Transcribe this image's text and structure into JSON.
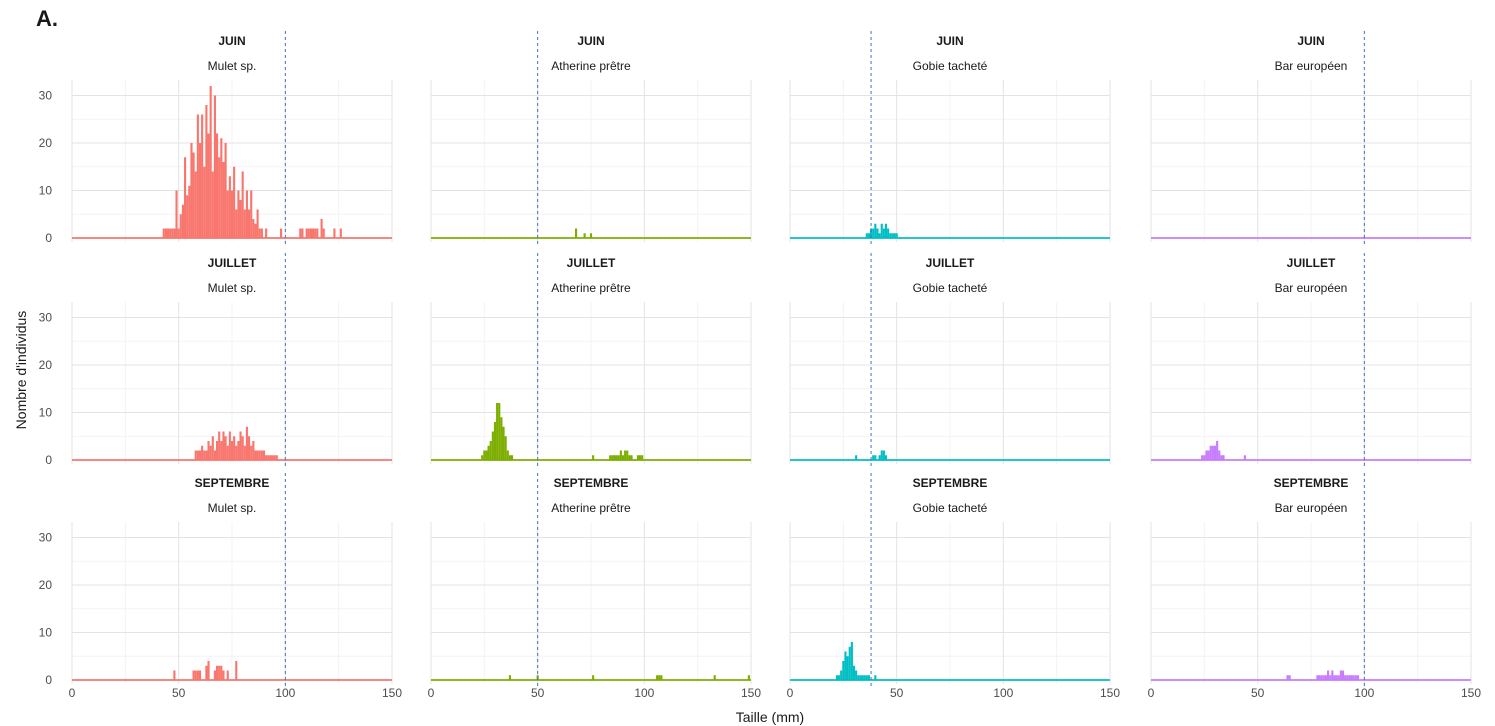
{
  "figure_label": "A.",
  "chart_data": {
    "type": "bar",
    "layout": "facet-grid",
    "xlabel": "Taille (mm)",
    "ylabel": "Nombre d'individus",
    "xlim": [
      0,
      150
    ],
    "ylim": [
      0,
      32
    ],
    "x_ticks": [
      0,
      50,
      100,
      150
    ],
    "y_ticks": [
      0,
      10,
      20,
      30
    ],
    "grid": true,
    "bar_width_mm": 1,
    "rows": [
      "JUIN",
      "JUILLET",
      "SEPTEMBRE"
    ],
    "columns": [
      {
        "species": "Mulet sp.",
        "color": "#F8766D",
        "reference_x": 100
      },
      {
        "species": "Atherine prêtre",
        "color": "#7CAE00",
        "reference_x": 50
      },
      {
        "species": "Gobie tacheté",
        "color": "#00BFC4",
        "reference_x": 38
      },
      {
        "species": "Bar européen",
        "color": "#C77CFF",
        "reference_x": 100
      }
    ],
    "panels": [
      {
        "month": "JUIN",
        "species": "Mulet sp.",
        "x": [
          43,
          44,
          45,
          46,
          47,
          48,
          49,
          50,
          51,
          52,
          53,
          54,
          55,
          56,
          57,
          58,
          59,
          60,
          61,
          62,
          63,
          64,
          65,
          66,
          67,
          68,
          69,
          70,
          71,
          72,
          73,
          74,
          75,
          76,
          77,
          78,
          79,
          80,
          81,
          82,
          83,
          84,
          85,
          86,
          87,
          88,
          89,
          91,
          98,
          107,
          108,
          110,
          111,
          112,
          113,
          114,
          115,
          117,
          118,
          123,
          126
        ],
        "y": [
          2,
          2,
          2,
          2,
          2,
          2,
          10,
          2,
          5,
          7,
          17,
          9,
          11,
          20,
          18,
          14,
          26,
          20,
          26,
          15,
          28,
          22,
          32,
          14,
          30,
          22,
          17,
          21,
          16,
          20,
          10,
          13,
          10,
          15,
          6,
          10,
          8,
          14,
          6,
          10,
          6,
          10,
          4,
          3,
          6,
          2,
          2,
          2,
          2,
          2,
          2,
          2,
          2,
          2,
          2,
          2,
          2,
          4,
          2,
          2,
          2
        ]
      },
      {
        "month": "JUIN",
        "species": "Atherine prêtre",
        "x": [
          68,
          72,
          75
        ],
        "y": [
          2,
          1,
          1
        ]
      },
      {
        "month": "JUIN",
        "species": "Gobie tacheté",
        "x": [
          36,
          37,
          38,
          39,
          40,
          41,
          42,
          43,
          44,
          45,
          46,
          47,
          48,
          49,
          50
        ],
        "y": [
          1,
          1,
          2,
          2,
          3,
          2,
          1,
          3,
          2,
          3,
          2,
          1,
          1,
          1,
          1
        ]
      },
      {
        "month": "JUIN",
        "species": "Bar européen",
        "x": [],
        "y": []
      },
      {
        "month": "JUILLET",
        "species": "Mulet sp.",
        "x": [
          58,
          59,
          60,
          61,
          62,
          63,
          64,
          65,
          66,
          67,
          68,
          69,
          70,
          71,
          72,
          73,
          74,
          75,
          76,
          77,
          78,
          79,
          80,
          81,
          82,
          83,
          84,
          85,
          86,
          87,
          88,
          89,
          90,
          91,
          92,
          93,
          94,
          95,
          96
        ],
        "y": [
          2,
          2,
          2,
          3,
          2,
          2,
          4,
          3,
          5,
          2,
          4,
          6,
          4,
          6,
          5,
          3,
          6,
          4,
          5,
          3,
          4,
          6,
          5,
          3,
          7,
          5,
          3,
          4,
          2,
          2,
          2,
          2,
          2,
          1,
          1,
          1,
          1,
          1,
          1
        ]
      },
      {
        "month": "JUILLET",
        "species": "Atherine prêtre",
        "x": [
          24,
          25,
          26,
          27,
          28,
          29,
          30,
          31,
          32,
          33,
          34,
          35,
          36,
          37,
          38,
          76,
          84,
          85,
          86,
          87,
          88,
          89,
          90,
          91,
          92,
          93,
          94,
          97,
          98,
          99
        ],
        "y": [
          1,
          2,
          2,
          3,
          4,
          6,
          8,
          12,
          12,
          9,
          7,
          5,
          2,
          1,
          1,
          1,
          1,
          1,
          1,
          1,
          1,
          2,
          1,
          2,
          2,
          1,
          1,
          1,
          1,
          1
        ]
      },
      {
        "month": "JUILLET",
        "species": "Gobie tacheté",
        "x": [
          31,
          39,
          40,
          42,
          43,
          44,
          45
        ],
        "y": [
          1,
          1,
          1,
          1,
          2,
          2,
          1
        ]
      },
      {
        "month": "JUILLET",
        "species": "Bar européen",
        "x": [
          24,
          25,
          26,
          27,
          28,
          29,
          30,
          31,
          32,
          33,
          34,
          44
        ],
        "y": [
          1,
          1,
          2,
          2,
          3,
          3,
          3,
          4,
          2,
          1,
          1,
          1
        ]
      },
      {
        "month": "SEPTEMBRE",
        "species": "Mulet sp.",
        "x": [
          48,
          57,
          58,
          59,
          60,
          63,
          64,
          67,
          68,
          69,
          70,
          71,
          73,
          77
        ],
        "y": [
          2,
          2,
          2,
          2,
          2,
          3,
          4,
          2,
          3,
          3,
          3,
          2,
          2,
          4
        ]
      },
      {
        "month": "SEPTEMBRE",
        "species": "Atherine prêtre",
        "x": [
          37,
          50,
          76,
          106,
          107,
          108,
          133,
          149
        ],
        "y": [
          1,
          1,
          1,
          1,
          1,
          1,
          1,
          1
        ]
      },
      {
        "month": "SEPTEMBRE",
        "species": "Gobie tacheté",
        "x": [
          22,
          23,
          24,
          25,
          26,
          27,
          28,
          29,
          30,
          31,
          32,
          33,
          34,
          35,
          36,
          37,
          40
        ],
        "y": [
          1,
          1,
          2,
          4,
          6,
          5,
          7,
          8,
          3,
          2,
          1,
          1,
          1,
          1,
          1,
          1,
          1
        ]
      },
      {
        "month": "SEPTEMBRE",
        "species": "Bar européen",
        "x": [
          64,
          65,
          78,
          79,
          80,
          81,
          82,
          83,
          84,
          85,
          86,
          87,
          88,
          89,
          90,
          91,
          92,
          93,
          94,
          95,
          96,
          97
        ],
        "y": [
          1,
          1,
          1,
          1,
          1,
          1,
          1,
          2,
          1,
          2,
          1,
          1,
          1,
          2,
          2,
          1,
          1,
          1,
          1,
          1,
          1,
          1
        ]
      }
    ]
  }
}
